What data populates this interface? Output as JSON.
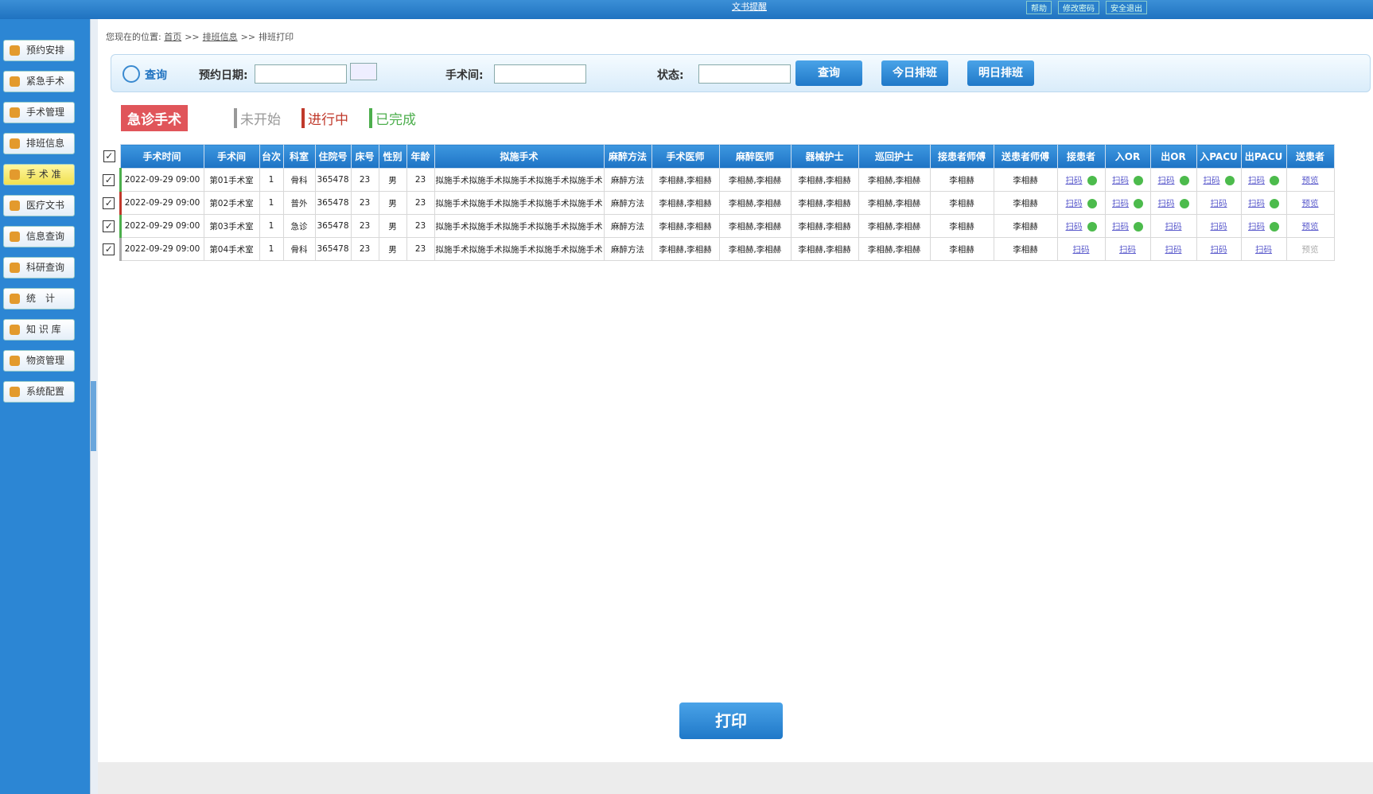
{
  "header": {
    "notice": "文书提醒",
    "links": [
      "帮助",
      "修改密码",
      "安全退出"
    ]
  },
  "sidebar": [
    "预约安排",
    "紧急手术",
    "手术管理",
    "排班信息",
    "手 术 准",
    "医疗文书",
    "信息查询",
    "科研查询",
    "统　计",
    "知 识 库",
    "物资管理",
    "系统配置"
  ],
  "breadcrumb": {
    "prefix": "您现在的位置:",
    "items": [
      "首页",
      "排班信息",
      "排班打印"
    ],
    "sep": ">>"
  },
  "search": {
    "title": "查询",
    "date_label": "预约日期:",
    "room_label": "手术间:",
    "status_label": "状态:",
    "buttons": [
      "查询",
      "今日排班",
      "明日排班"
    ]
  },
  "legend": {
    "emergency": "急诊手术",
    "items": [
      {
        "label": "未开始",
        "color": "#999999"
      },
      {
        "label": "进行中",
        "color": "#c0392b"
      },
      {
        "label": "已完成",
        "color": "#4cae4c"
      }
    ]
  },
  "table": {
    "headers": [
      "手术时间",
      "手术间",
      "台次",
      "科室",
      "住院号",
      "床号",
      "性别",
      "年龄",
      "拟施手术",
      "麻醉方法",
      "手术医师",
      "麻醉医师",
      "器械护士",
      "巡回护士",
      "接患者师傅",
      "送患者师傅",
      "接患者",
      "入OR",
      "出OR",
      "入PACU",
      "出PACU",
      "送患者"
    ],
    "rows": [
      {
        "color": "#4cae4c",
        "cells": [
          "2022-09-29 09:00",
          "第01手术室",
          "1",
          "骨科",
          "365478",
          "23",
          "男",
          "23",
          "拟施手术拟施手术拟施手术拟施手术拟施手术",
          "麻醉方法",
          "李相赫,李相赫",
          "李相赫,李相赫",
          "李相赫,李相赫",
          "李相赫,李相赫",
          "李相赫",
          "李相赫"
        ],
        "steps": [
          {
            "label": "扫码",
            "done": true
          },
          {
            "label": "扫码",
            "done": true
          },
          {
            "label": "扫码",
            "done": true
          },
          {
            "label": "扫码",
            "done": true
          },
          {
            "label": "扫码",
            "done": true
          }
        ],
        "preview": {
          "label": "预览",
          "enabled": true
        }
      },
      {
        "color": "#c0392b",
        "cells": [
          "2022-09-29 09:00",
          "第02手术室",
          "1",
          "普外",
          "365478",
          "23",
          "男",
          "23",
          "拟施手术拟施手术拟施手术拟施手术拟施手术",
          "麻醉方法",
          "李相赫,李相赫",
          "李相赫,李相赫",
          "李相赫,李相赫",
          "李相赫,李相赫",
          "李相赫",
          "李相赫"
        ],
        "steps": [
          {
            "label": "扫码",
            "done": true
          },
          {
            "label": "扫码",
            "done": true
          },
          {
            "label": "扫码",
            "done": true
          },
          {
            "label": "扫码",
            "done": false
          },
          {
            "label": "扫码",
            "done": true
          }
        ],
        "preview": {
          "label": "预览",
          "enabled": true
        }
      },
      {
        "color": "#4cae4c",
        "cells": [
          "2022-09-29 09:00",
          "第03手术室",
          "1",
          "急诊",
          "365478",
          "23",
          "男",
          "23",
          "拟施手术拟施手术拟施手术拟施手术拟施手术",
          "麻醉方法",
          "李相赫,李相赫",
          "李相赫,李相赫",
          "李相赫,李相赫",
          "李相赫,李相赫",
          "李相赫",
          "李相赫"
        ],
        "steps": [
          {
            "label": "扫码",
            "done": true
          },
          {
            "label": "扫码",
            "done": true
          },
          {
            "label": "扫码",
            "done": false
          },
          {
            "label": "扫码",
            "done": false
          },
          {
            "label": "扫码",
            "done": true
          }
        ],
        "preview": {
          "label": "预览",
          "enabled": true
        }
      },
      {
        "color": "#aaaaaa",
        "cells": [
          "2022-09-29 09:00",
          "第04手术室",
          "1",
          "骨科",
          "365478",
          "23",
          "男",
          "23",
          "拟施手术拟施手术拟施手术拟施手术拟施手术",
          "麻醉方法",
          "李相赫,李相赫",
          "李相赫,李相赫",
          "李相赫,李相赫",
          "李相赫,李相赫",
          "李相赫",
          "李相赫"
        ],
        "steps": [
          {
            "label": "扫码",
            "done": false
          },
          {
            "label": "扫码",
            "done": false
          },
          {
            "label": "扫码",
            "done": false
          },
          {
            "label": "扫码",
            "done": false
          },
          {
            "label": "扫码",
            "done": false
          }
        ],
        "preview": {
          "label": "预览",
          "enabled": false
        }
      }
    ]
  },
  "print_button": "打印"
}
